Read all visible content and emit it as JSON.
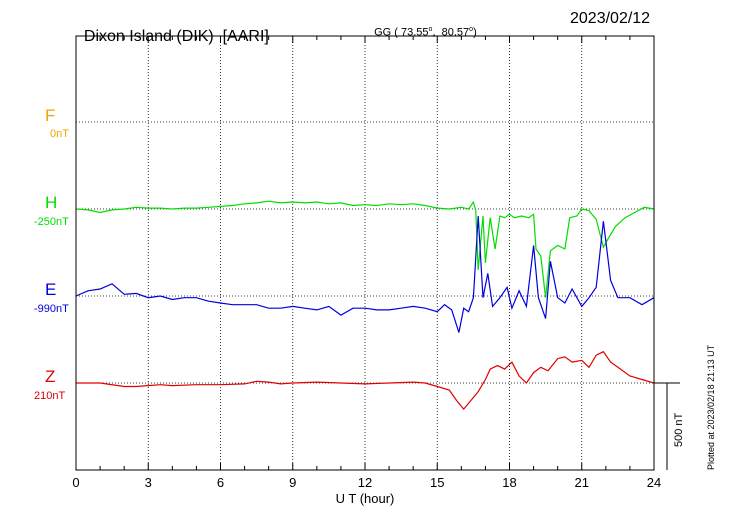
{
  "header": {
    "station": "Dixon Island (DIK)",
    "institute": "[AARI]",
    "coords_prefix": "GG ( 73.55",
    "coords_mid": ",  80.57",
    "coords_suffix": ")",
    "degree_sign": "o",
    "date": "2023/02/12"
  },
  "scale_label": "500 nT",
  "plotted_note": "Plotted at 2023/02/18 21:13 UT",
  "chart_data": {
    "type": "line",
    "title": "Dixon Island (DIK)  [AARI]",
    "xlabel": "U T (hour)",
    "xlim": [
      0,
      24
    ],
    "x_ticks": [
      0,
      3,
      6,
      9,
      12,
      15,
      18,
      21,
      24
    ],
    "x_tick_labels": [
      "0",
      "3",
      "6",
      "9",
      "12",
      "15",
      "18",
      "21",
      "24"
    ],
    "grid": true,
    "scale_bar_nT": 500,
    "series": [
      {
        "name": "F",
        "baseline": "0nT",
        "color": "#f0a500",
        "points": []
      },
      {
        "name": "H",
        "baseline": "-250nT",
        "color": "#00dd00",
        "points": [
          [
            0,
            -250
          ],
          [
            0.5,
            -255
          ],
          [
            1,
            -270
          ],
          [
            1.5,
            -255
          ],
          [
            2,
            -250
          ],
          [
            2.5,
            -240
          ],
          [
            3,
            -245
          ],
          [
            3.5,
            -245
          ],
          [
            4,
            -250
          ],
          [
            4.5,
            -245
          ],
          [
            5,
            -245
          ],
          [
            5.5,
            -240
          ],
          [
            6,
            -235
          ],
          [
            6.5,
            -230
          ],
          [
            7,
            -220
          ],
          [
            7.5,
            -215
          ],
          [
            8,
            -205
          ],
          [
            8.5,
            -215
          ],
          [
            9,
            -210
          ],
          [
            9.5,
            -215
          ],
          [
            10,
            -210
          ],
          [
            10.5,
            -220
          ],
          [
            11,
            -215
          ],
          [
            11.5,
            -230
          ],
          [
            12,
            -225
          ],
          [
            12.5,
            -230
          ],
          [
            13,
            -220
          ],
          [
            13.5,
            -225
          ],
          [
            14,
            -220
          ],
          [
            14.5,
            -230
          ],
          [
            15,
            -245
          ],
          [
            15.5,
            -250
          ],
          [
            16,
            -240
          ],
          [
            16.3,
            -250
          ],
          [
            16.5,
            -210
          ],
          [
            16.6,
            -260
          ],
          [
            16.7,
            -600
          ],
          [
            16.9,
            -290
          ],
          [
            17,
            -560
          ],
          [
            17.2,
            -300
          ],
          [
            17.4,
            -480
          ],
          [
            17.6,
            -290
          ],
          [
            17.8,
            -300
          ],
          [
            18,
            -280
          ],
          [
            18.2,
            -300
          ],
          [
            18.5,
            -290
          ],
          [
            18.8,
            -300
          ],
          [
            19,
            -280
          ],
          [
            19.1,
            -480
          ],
          [
            19.3,
            -520
          ],
          [
            19.5,
            -760
          ],
          [
            19.7,
            -490
          ],
          [
            20,
            -460
          ],
          [
            20.3,
            -480
          ],
          [
            20.5,
            -300
          ],
          [
            20.8,
            -290
          ],
          [
            21,
            -250
          ],
          [
            21.3,
            -260
          ],
          [
            21.6,
            -310
          ],
          [
            21.9,
            -470
          ],
          [
            22.1,
            -420
          ],
          [
            22.4,
            -350
          ],
          [
            22.8,
            -300
          ],
          [
            23.2,
            -270
          ],
          [
            23.6,
            -240
          ],
          [
            24,
            -250
          ]
        ]
      },
      {
        "name": "E",
        "baseline": "-990nT",
        "color": "#0000dd",
        "points": [
          [
            0,
            -990
          ],
          [
            0.5,
            -960
          ],
          [
            1,
            -950
          ],
          [
            1.5,
            -920
          ],
          [
            2,
            -980
          ],
          [
            2.5,
            -975
          ],
          [
            3,
            -1000
          ],
          [
            3.5,
            -990
          ],
          [
            4,
            -1010
          ],
          [
            4.5,
            -1000
          ],
          [
            5,
            -1000
          ],
          [
            5.5,
            -1020
          ],
          [
            6,
            -1030
          ],
          [
            6.5,
            -1040
          ],
          [
            7,
            -1040
          ],
          [
            7.5,
            -1040
          ],
          [
            8,
            -1060
          ],
          [
            8.5,
            -1060
          ],
          [
            9,
            -1050
          ],
          [
            9.5,
            -1060
          ],
          [
            10,
            -1070
          ],
          [
            10.5,
            -1050
          ],
          [
            11,
            -1100
          ],
          [
            11.5,
            -1060
          ],
          [
            12,
            -1060
          ],
          [
            12.5,
            -1070
          ],
          [
            13,
            -1070
          ],
          [
            13.5,
            -1060
          ],
          [
            14,
            -1050
          ],
          [
            14.5,
            -1060
          ],
          [
            15,
            -1080
          ],
          [
            15.3,
            -1040
          ],
          [
            15.6,
            -1070
          ],
          [
            15.9,
            -1200
          ],
          [
            16.1,
            -1060
          ],
          [
            16.3,
            -1080
          ],
          [
            16.5,
            -1000
          ],
          [
            16.7,
            -530
          ],
          [
            16.9,
            -1000
          ],
          [
            17.1,
            -860
          ],
          [
            17.3,
            -1050
          ],
          [
            17.6,
            -1000
          ],
          [
            17.9,
            -940
          ],
          [
            18.1,
            -1060
          ],
          [
            18.4,
            -960
          ],
          [
            18.7,
            -1050
          ],
          [
            19,
            -700
          ],
          [
            19.2,
            -1000
          ],
          [
            19.5,
            -1120
          ],
          [
            19.7,
            -790
          ],
          [
            20,
            -1000
          ],
          [
            20.3,
            -1030
          ],
          [
            20.6,
            -950
          ],
          [
            21,
            -1050
          ],
          [
            21.3,
            -1000
          ],
          [
            21.6,
            -940
          ],
          [
            21.9,
            -560
          ],
          [
            22.2,
            -900
          ],
          [
            22.5,
            -1000
          ],
          [
            23,
            -1000
          ],
          [
            23.5,
            -1040
          ],
          [
            24,
            -1000
          ]
        ]
      },
      {
        "name": "Z",
        "baseline": "210nT",
        "color": "#e00000",
        "points": [
          [
            0,
            210
          ],
          [
            1,
            210
          ],
          [
            2,
            190
          ],
          [
            2.5,
            190
          ],
          [
            3,
            195
          ],
          [
            3.5,
            200
          ],
          [
            4,
            195
          ],
          [
            5,
            200
          ],
          [
            6,
            200
          ],
          [
            7,
            205
          ],
          [
            7.5,
            220
          ],
          [
            8,
            215
          ],
          [
            8.5,
            205
          ],
          [
            9,
            210
          ],
          [
            10,
            215
          ],
          [
            11,
            210
          ],
          [
            12,
            205
          ],
          [
            13,
            210
          ],
          [
            14,
            215
          ],
          [
            14.5,
            210
          ],
          [
            15,
            190
          ],
          [
            15.5,
            170
          ],
          [
            15.8,
            110
          ],
          [
            16.1,
            60
          ],
          [
            16.4,
            110
          ],
          [
            16.7,
            160
          ],
          [
            17,
            230
          ],
          [
            17.2,
            290
          ],
          [
            17.5,
            310
          ],
          [
            17.8,
            290
          ],
          [
            18.1,
            330
          ],
          [
            18.4,
            250
          ],
          [
            18.7,
            210
          ],
          [
            19,
            270
          ],
          [
            19.3,
            300
          ],
          [
            19.6,
            280
          ],
          [
            20,
            350
          ],
          [
            20.3,
            360
          ],
          [
            20.6,
            330
          ],
          [
            21,
            340
          ],
          [
            21.3,
            300
          ],
          [
            21.6,
            370
          ],
          [
            21.9,
            390
          ],
          [
            22.2,
            330
          ],
          [
            22.5,
            300
          ],
          [
            23,
            250
          ],
          [
            23.5,
            230
          ],
          [
            24,
            210
          ]
        ]
      }
    ]
  }
}
